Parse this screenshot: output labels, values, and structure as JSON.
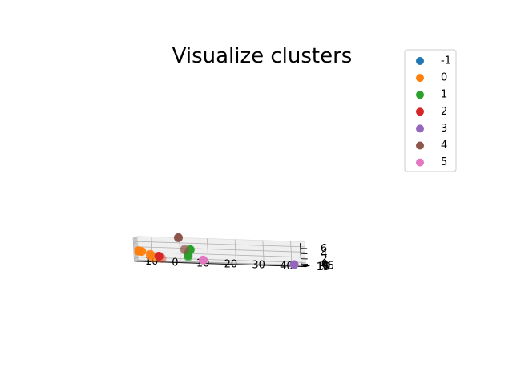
{
  "chart_data": {
    "type": "scatter",
    "projection": "3d",
    "title": "Visualize clusters",
    "xlabel": "",
    "ylabel": "",
    "zlabel": "",
    "x_ticks": [
      "−10",
      "0",
      "10",
      "20",
      "30",
      "40"
    ],
    "y_ticks": [
      "−5",
      "0",
      "5",
      "10",
      "15"
    ],
    "z_ticks": [
      "0",
      "2",
      "4",
      "6"
    ],
    "grid": true,
    "legend": {
      "placement": "top-right",
      "entries": [
        {
          "label": "-1",
          "color": "#1f77b4"
        },
        {
          "label": "0",
          "color": "#ff7f0e"
        },
        {
          "label": "1",
          "color": "#2ca02c"
        },
        {
          "label": "2",
          "color": "#d62728"
        },
        {
          "label": "3",
          "color": "#9467bd"
        },
        {
          "label": "4",
          "color": "#8c564b"
        },
        {
          "label": "5",
          "color": "#e377c2"
        }
      ]
    },
    "series": [
      {
        "name": "0",
        "color": "#ff7f0e",
        "points": [
          {
            "x": -14,
            "y": 3,
            "z": 2.8,
            "a": 1.0
          },
          {
            "x": -14,
            "y": 3,
            "z": 2.6,
            "a": 1.0
          },
          {
            "x": -13,
            "y": 2,
            "z": 2.5,
            "a": 0.95
          },
          {
            "x": -10,
            "y": 2,
            "z": 1.5,
            "a": 0.9
          },
          {
            "x": -10,
            "y": 1,
            "z": 1.0,
            "a": 0.7
          },
          {
            "x": -9,
            "y": 0,
            "z": 0.5,
            "a": 0.55
          },
          {
            "x": -7,
            "y": -1,
            "z": 0.2,
            "a": 0.45
          },
          {
            "x": -9,
            "y": -1,
            "z": 0.0,
            "a": 0.4
          }
        ]
      },
      {
        "name": "1",
        "color": "#2ca02c",
        "points": [
          {
            "x": 5,
            "y": 10,
            "z": 4.0,
            "a": 1.0
          },
          {
            "x": 4,
            "y": 8,
            "z": 2.5,
            "a": 0.95
          },
          {
            "x": 4,
            "y": 8,
            "z": 2.2,
            "a": 0.85
          },
          {
            "x": 4,
            "y": 8,
            "z": 1.9,
            "a": 0.8
          },
          {
            "x": 4,
            "y": 8,
            "z": 1.6,
            "a": 0.7
          },
          {
            "x": 4,
            "y": 8,
            "z": 1.2,
            "a": 0.6
          }
        ]
      },
      {
        "name": "2",
        "color": "#d62728",
        "points": [
          {
            "x": -7,
            "y": 1,
            "z": 0.9,
            "a": 1.0
          },
          {
            "x": -6,
            "y": 0,
            "z": 0.0,
            "a": 0.4
          }
        ]
      },
      {
        "name": "3",
        "color": "#9467bd",
        "points": [
          {
            "x": 42,
            "y": 8,
            "z": -0.5,
            "a": 1.0
          }
        ]
      },
      {
        "name": "4",
        "color": "#8c564b",
        "points": [
          {
            "x": 1,
            "y": 11,
            "z": 8.5,
            "a": 1.0
          },
          {
            "x": 3,
            "y": 10,
            "z": 4.2,
            "a": 0.55
          },
          {
            "x": 3,
            "y": 10,
            "z": 3.8,
            "a": 0.45
          }
        ]
      },
      {
        "name": "5",
        "color": "#e377c2",
        "points": [
          {
            "x": 9,
            "y": 3,
            "z": 0.0,
            "a": 1.0
          }
        ]
      }
    ]
  }
}
